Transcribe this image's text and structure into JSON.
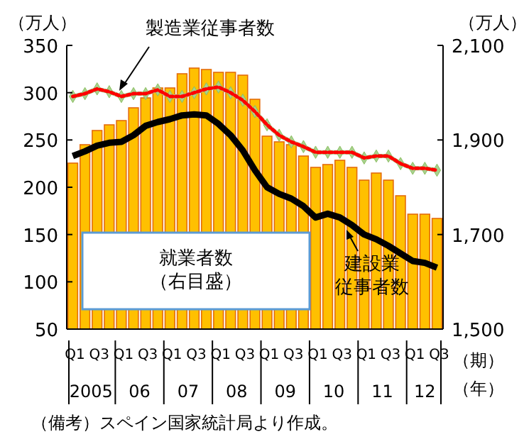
{
  "chart_data": {
    "type": "bar",
    "ylabel": "（万人）",
    "y2label": "（万人）",
    "xlabel": "（期）",
    "categories": [
      "Q1",
      null,
      "Q3",
      null,
      "Q1",
      null,
      "Q3",
      null,
      "Q1",
      null,
      "Q3",
      null,
      "Q1",
      null,
      "Q3",
      null,
      "Q1",
      null,
      "Q3",
      null,
      "Q1",
      null,
      "Q3",
      null,
      "Q1",
      null,
      "Q3",
      null,
      "Q1",
      null,
      "Q3"
    ],
    "series": [
      {
        "name": "就業者数（右目盛）",
        "axis": "y2",
        "color": "#ffc000",
        "values": [
          1851,
          1890,
          1920,
          1932,
          1941,
          1968,
          1989,
          2010,
          2010,
          2040,
          2052,
          2049,
          2043,
          2043,
          2037,
          1986,
          1908,
          1896,
          1890,
          1866,
          1842,
          1848,
          1857,
          1842,
          1815,
          1830,
          1815,
          1782,
          1743,
          1743,
          1734
        ]
      },
      {
        "name": "製造業従事者数",
        "type": "line",
        "color": "#ff0000",
        "marker": "diamond",
        "line_style": "dotted",
        "values": [
          296,
          299,
          304,
          301,
          296,
          299,
          299,
          303,
          296,
          296,
          300,
          304,
          306,
          300,
          292,
          280,
          266,
          255,
          248,
          243,
          237,
          237,
          237,
          237,
          231,
          233,
          233,
          225,
          220,
          220,
          218
        ]
      },
      {
        "name": "建設業従事者数",
        "type": "line",
        "color": "#000000",
        "marker": "none",
        "line_style": "solid",
        "values": [
          233,
          238,
          244,
          247,
          248,
          255,
          265,
          269,
          272,
          276,
          277,
          276,
          267,
          255,
          239,
          218,
          200,
          193,
          188,
          180,
          168,
          172,
          168,
          160,
          150,
          145,
          138,
          130,
          122,
          120,
          115
        ]
      }
    ],
    "ylim": [
      50,
      350
    ],
    "yticks": [
      50,
      100,
      150,
      200,
      250,
      300,
      350
    ],
    "y2lim": [
      1500,
      2100
    ],
    "y2ticks": [
      {
        "value": 1500,
        "label": "1,500"
      },
      {
        "value": 1700,
        "label": "1,700"
      },
      {
        "value": 1900,
        "label": "1,900"
      },
      {
        "value": 2100,
        "label": "2,100"
      }
    ],
    "annotations": [
      "（備考）スペイン国家統計局より作成。",
      "（年）",
      "2005",
      "06",
      "07",
      "08",
      "09",
      "10",
      "11",
      "12"
    ]
  }
}
